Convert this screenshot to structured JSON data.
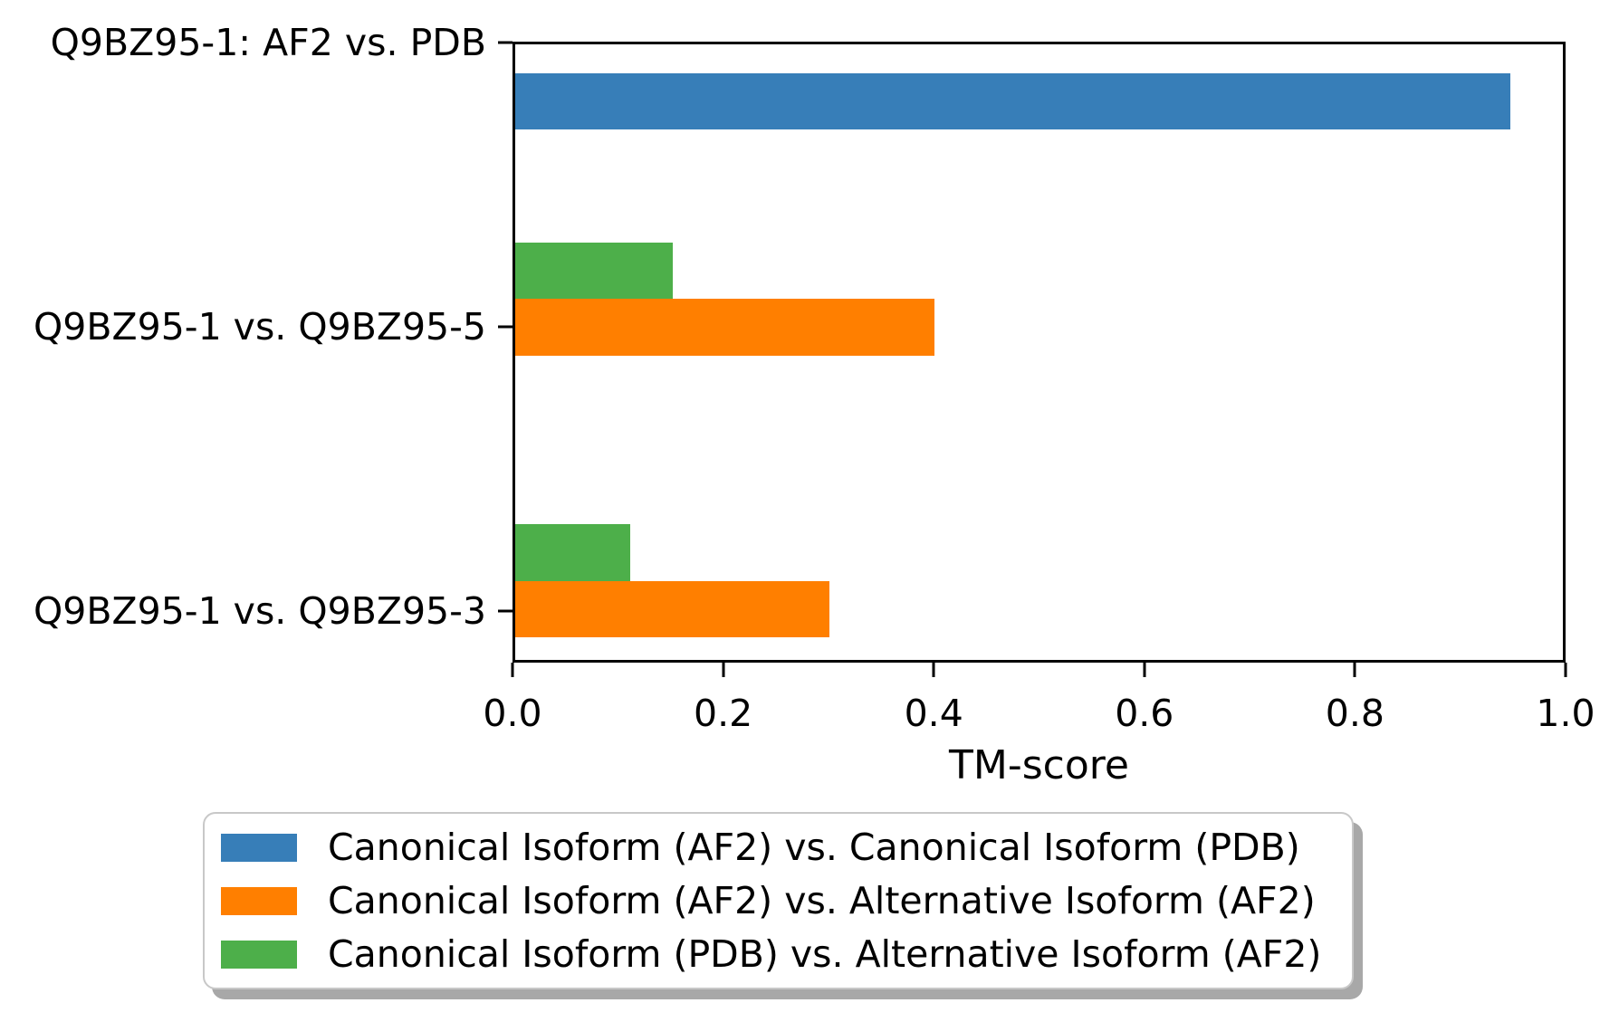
{
  "chart_data": {
    "type": "bar",
    "orientation": "horizontal",
    "title": "",
    "xlabel": "TM-score",
    "ylabel": "",
    "xlim": [
      0.0,
      1.0
    ],
    "xticks": [
      0.0,
      0.2,
      0.4,
      0.6,
      0.8,
      1.0
    ],
    "grid": false,
    "legend_position": "below-chart",
    "categories": [
      "Q9BZ95-1: AF2 vs. PDB",
      "Q9BZ95-1 vs. Q9BZ95-5",
      "Q9BZ95-1 vs. Q9BZ95-3"
    ],
    "category_positions": [
      2,
      1,
      0
    ],
    "ylim": [
      -0.18,
      2.003
    ],
    "bar_height": 0.2,
    "series": [
      {
        "name": "Canonical Isoform (AF2) vs. Canonical Isoform (PDB)",
        "color": "#377eb8",
        "offset": -0.2,
        "values": [
          0.95,
          null,
          null
        ]
      },
      {
        "name": "Canonical Isoform (AF2) vs. Alternative Isoform (AF2)",
        "color": "#ff7f00",
        "offset": 0,
        "values": [
          null,
          0.4,
          0.3
        ]
      },
      {
        "name": "Canonical Isoform (PDB) vs. Alternative Isoform (AF2)",
        "color": "#4daf4a",
        "offset": 0.2,
        "values": [
          null,
          0.15,
          0.11
        ]
      }
    ],
    "colors": {
      "spine": "#000000",
      "text": "#000000",
      "legend_border": "#c8c8c8",
      "legend_shadow": "#a8a8a8"
    }
  }
}
